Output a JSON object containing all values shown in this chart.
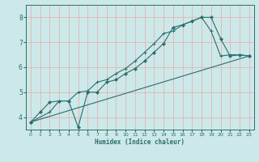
{
  "xlabel": "Humidex (Indice chaleur)",
  "bg_color": "#cde8e8",
  "line_color": "#2a6e6e",
  "grid_color": "#e8aaaa",
  "xlim": [
    -0.5,
    23.5
  ],
  "ylim": [
    3.5,
    8.5
  ],
  "xticks": [
    0,
    1,
    2,
    3,
    4,
    5,
    6,
    7,
    8,
    9,
    10,
    11,
    12,
    13,
    14,
    15,
    16,
    17,
    18,
    19,
    20,
    21,
    22,
    23
  ],
  "yticks": [
    4,
    5,
    6,
    7,
    8
  ],
  "curve1_x": [
    0,
    1,
    2,
    3,
    4,
    5,
    6,
    7,
    8,
    9,
    10,
    11,
    12,
    13,
    14,
    15,
    16,
    17,
    18,
    19,
    20,
    21,
    22,
    23
  ],
  "curve1_y": [
    3.8,
    4.2,
    4.6,
    4.65,
    4.65,
    3.6,
    5.0,
    5.0,
    5.4,
    5.5,
    5.75,
    5.95,
    6.25,
    6.6,
    6.95,
    7.6,
    7.7,
    7.85,
    8.0,
    8.0,
    7.15,
    6.45,
    6.5,
    6.45
  ],
  "curve2_x": [
    0,
    2,
    3,
    4,
    5,
    6,
    7,
    8,
    9,
    10,
    11,
    12,
    13,
    14,
    15,
    16,
    17,
    18,
    19,
    20,
    21,
    22,
    23
  ],
  "curve2_y": [
    3.8,
    4.2,
    4.65,
    4.65,
    5.0,
    5.05,
    5.4,
    5.5,
    5.75,
    5.95,
    6.25,
    6.6,
    6.95,
    7.35,
    7.45,
    7.7,
    7.85,
    8.0,
    7.45,
    6.45,
    6.5,
    6.5,
    6.45
  ],
  "curve3_x": [
    0,
    23
  ],
  "curve3_y": [
    3.8,
    6.45
  ]
}
